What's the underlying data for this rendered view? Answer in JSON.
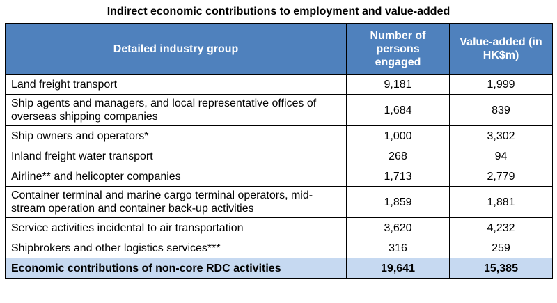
{
  "title": "Indirect economic contributions to employment and value-added",
  "table": {
    "headers": [
      "Detailed industry group",
      "Number of persons engaged",
      "Value-added (in HK$m)"
    ],
    "rows": [
      {
        "group": "Land freight transport",
        "persons": "9,181",
        "value_added": "1,999"
      },
      {
        "group": "Ship agents and managers, and local representative offices of overseas shipping companies",
        "persons": "1,684",
        "value_added": "839"
      },
      {
        "group": "Ship owners and operators*",
        "persons": "1,000",
        "value_added": "3,302"
      },
      {
        "group": "Inland freight water transport",
        "persons": "268",
        "value_added": "94"
      },
      {
        "group": "Airline** and helicopter companies",
        "persons": "1,713",
        "value_added": "2,779"
      },
      {
        "group": "Container terminal and marine cargo terminal operators, mid-stream operation and container back-up activities",
        "persons": "1,859",
        "value_added": "1,881"
      },
      {
        "group": "Service activities incidental to air transportation",
        "persons": "3,620",
        "value_added": "4,232"
      },
      {
        "group": "Shipbrokers and other logistics services***",
        "persons": "316",
        "value_added": "259"
      }
    ],
    "total": {
      "group": "Economic contributions of non-core RDC activities",
      "persons": "19,641",
      "value_added": "15,385"
    }
  },
  "colors": {
    "header_background": "#4f81bd",
    "header_text": "#ffffff",
    "total_background": "#c6d9f1"
  }
}
